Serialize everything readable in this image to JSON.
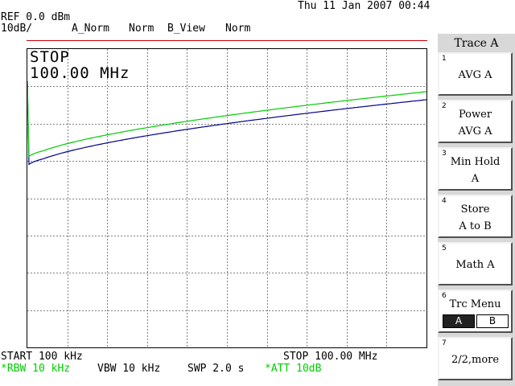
{
  "header": {
    "datetime": "Thu 11 Jan 2007 00:44",
    "ref": "REF 0.0 dBm",
    "scale": "10dB/",
    "trace_a_mode": "A_Norm",
    "norm1": "Norm",
    "trace_b_mode": "B_View",
    "norm2": "Norm"
  },
  "marker": {
    "status": "STOP",
    "frequency": "100.00 MHz"
  },
  "footer": {
    "start": "START 100 kHz",
    "stop": "STOP 100.00 MHz",
    "rbw": "*RBW 10 kHz",
    "vbw": "VBW 10 kHz",
    "swp": "SWP 2.0 s",
    "att": "*ATT 10dB"
  },
  "menu": {
    "title": "Trace A",
    "keys": [
      {
        "num": "1",
        "line1": "AVG A",
        "line2": ""
      },
      {
        "num": "2",
        "line1": "Power",
        "line2": "AVG A"
      },
      {
        "num": "3",
        "line1": "Min Hold",
        "line2": "A"
      },
      {
        "num": "4",
        "line1": "Store",
        "line2": "A to B"
      },
      {
        "num": "5",
        "line1": "Math A",
        "line2": ""
      },
      {
        "num": "6",
        "line1": "Trc Menu",
        "opt_a": "A",
        "opt_b": "B"
      },
      {
        "num": "7",
        "line1": "2/2,more",
        "line2": ""
      }
    ]
  },
  "colors": {
    "trace_a": "#00cc00",
    "trace_b": "#00008b",
    "ref_line": "#cc0000",
    "grid": "#7f7f7f"
  }
}
